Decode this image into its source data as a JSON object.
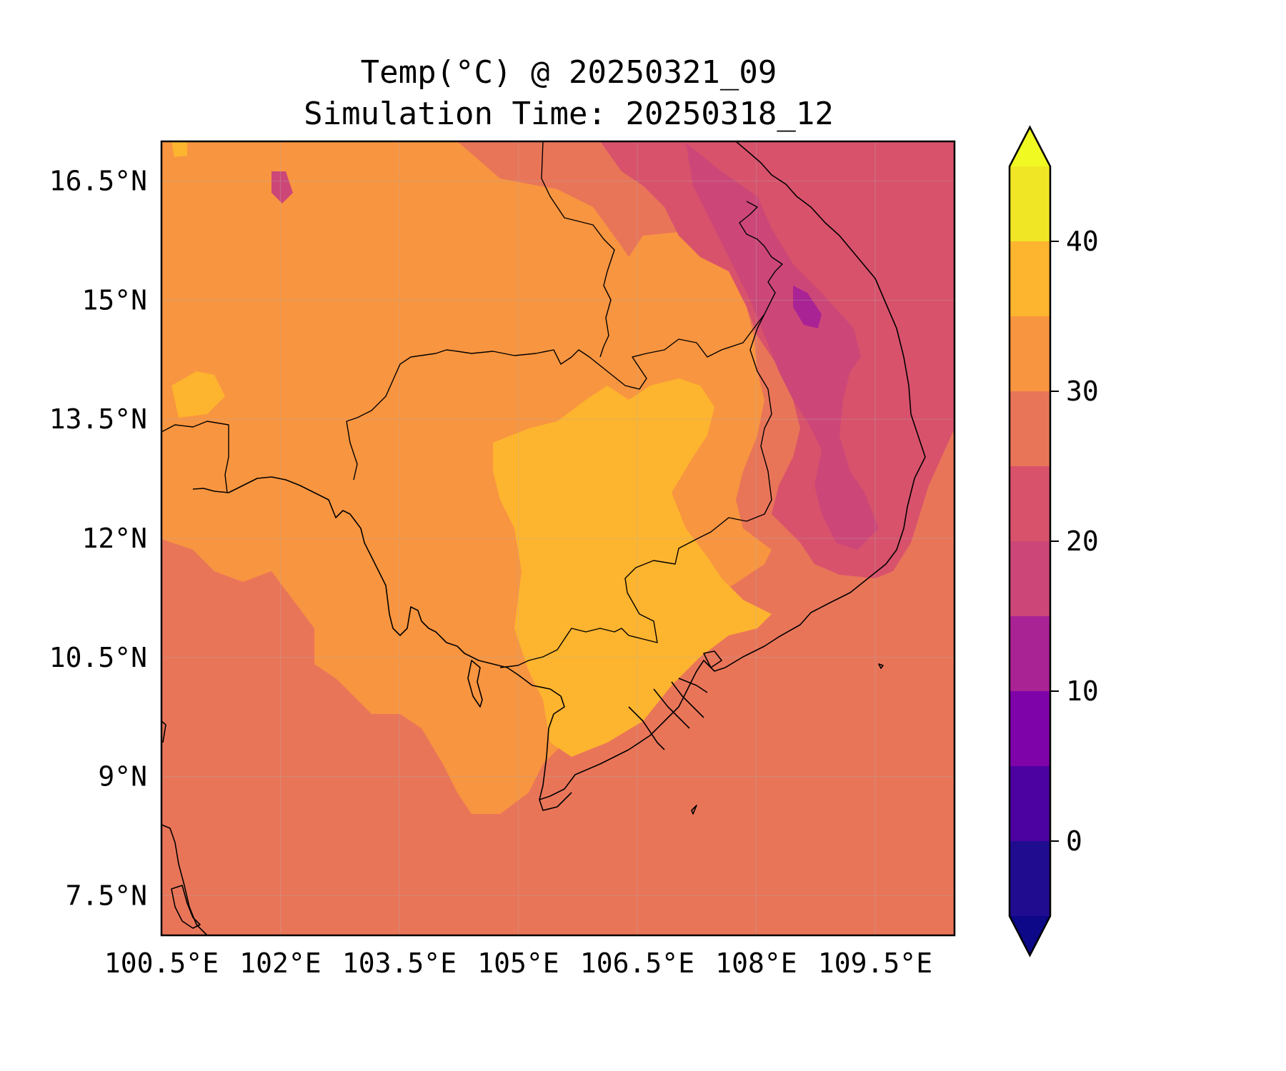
{
  "map": {
    "title_line1": "Temp(°C) @ 20250321_09",
    "title_line2": "Simulation Time: 20250318_12",
    "extent": {
      "lon": [
        100.5,
        110.5
      ],
      "lat": [
        7.0,
        17.0
      ]
    },
    "x_ticks": [
      {
        "value": 100.5,
        "label": "100.5°E"
      },
      {
        "value": 102.0,
        "label": "102°E"
      },
      {
        "value": 103.5,
        "label": "103.5°E"
      },
      {
        "value": 105.0,
        "label": "105°E"
      },
      {
        "value": 106.5,
        "label": "106.5°E"
      },
      {
        "value": 108.0,
        "label": "108°E"
      },
      {
        "value": 109.5,
        "label": "109.5°E"
      }
    ],
    "y_ticks": [
      {
        "value": 16.5,
        "label": "16.5°N"
      },
      {
        "value": 15.0,
        "label": "15°N"
      },
      {
        "value": 13.5,
        "label": "13.5°N"
      },
      {
        "value": 12.0,
        "label": "12°N"
      },
      {
        "value": 10.5,
        "label": "10.5°N"
      },
      {
        "value": 9.0,
        "label": "9°N"
      },
      {
        "value": 7.5,
        "label": "7.5°N"
      }
    ],
    "gridlines": true,
    "colormap": "plasma"
  },
  "colorbar": {
    "levels": [
      -5,
      0,
      5,
      10,
      15,
      20,
      25,
      30,
      35,
      40,
      45
    ],
    "colors": [
      "#1f0c8f",
      "#4c02a1",
      "#7e03a8",
      "#a92395",
      "#cc4778",
      "#d8526c",
      "#e97559",
      "#f89540",
      "#fdb42f",
      "#f0e626"
    ],
    "under_color": "#0d0887",
    "over_color": "#f0f921",
    "extend": "both",
    "ticks": [
      {
        "value": 0,
        "label": "0"
      },
      {
        "value": 10,
        "label": "10"
      },
      {
        "value": 20,
        "label": "20"
      },
      {
        "value": 30,
        "label": "30"
      },
      {
        "value": 40,
        "label": "40"
      }
    ]
  }
}
